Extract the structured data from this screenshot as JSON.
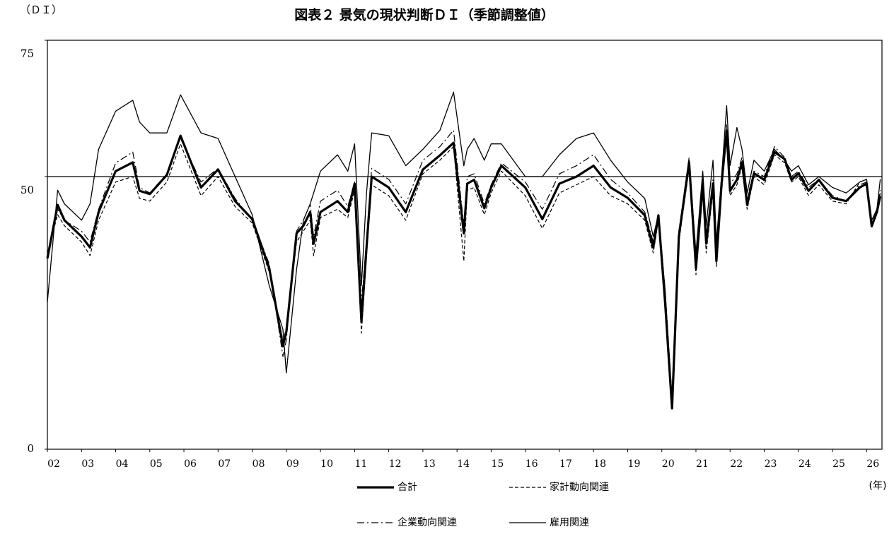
{
  "chart_data": {
    "type": "line",
    "title": "図表２ 景気の現状判断ＤＩ（季節調整値）",
    "y_label": "（ＤＩ）",
    "x_label": "(年)",
    "xlim": [
      2002,
      2026.45
    ],
    "ylim": [
      0,
      75
    ],
    "yticks": [
      0,
      50,
      75
    ],
    "reference_line": 50,
    "xticks": [
      {
        "value": 2002,
        "label": "02"
      },
      {
        "value": 2003,
        "label": "03"
      },
      {
        "value": 2004,
        "label": "04"
      },
      {
        "value": 2005,
        "label": "05"
      },
      {
        "value": 2006,
        "label": "06"
      },
      {
        "value": 2007,
        "label": "07"
      },
      {
        "value": 2008,
        "label": "08"
      },
      {
        "value": 2009,
        "label": "09"
      },
      {
        "value": 2010,
        "label": "10"
      },
      {
        "value": 2011,
        "label": "11"
      },
      {
        "value": 2012,
        "label": "12"
      },
      {
        "value": 2013,
        "label": "13"
      },
      {
        "value": 2014,
        "label": "14"
      },
      {
        "value": 2015,
        "label": "15"
      },
      {
        "value": 2016,
        "label": "16"
      },
      {
        "value": 2017,
        "label": "17"
      },
      {
        "value": 2018,
        "label": "18"
      },
      {
        "value": 2019,
        "label": "19"
      },
      {
        "value": 2020,
        "label": "20"
      },
      {
        "value": 2021,
        "label": "21"
      },
      {
        "value": 2022,
        "label": "22"
      },
      {
        "value": 2023,
        "label": "23"
      },
      {
        "value": 2024,
        "label": "24"
      },
      {
        "value": 2025,
        "label": "25"
      },
      {
        "value": 2026,
        "label": "26"
      }
    ],
    "x": [
      2002.0,
      2002.3,
      2002.5,
      2003.0,
      2003.25,
      2003.5,
      2004.0,
      2004.5,
      2004.7,
      2005.0,
      2005.5,
      2005.9,
      2006.5,
      2007.0,
      2007.5,
      2008.0,
      2008.5,
      2008.9,
      2009.0,
      2009.3,
      2009.5,
      2009.7,
      2009.8,
      2010.0,
      2010.5,
      2010.8,
      2011.0,
      2011.2,
      2011.35,
      2011.5,
      2012.0,
      2012.5,
      2013.0,
      2013.5,
      2013.9,
      2014.2,
      2014.3,
      2014.5,
      2014.8,
      2015.0,
      2015.3,
      2016.0,
      2016.5,
      2017.0,
      2017.5,
      2018.0,
      2018.5,
      2019.0,
      2019.5,
      2019.75,
      2019.9,
      2020.1,
      2020.3,
      2020.5,
      2020.8,
      2021.0,
      2021.2,
      2021.3,
      2021.5,
      2021.6,
      2021.75,
      2021.9,
      2022.0,
      2022.2,
      2022.35,
      2022.5,
      2022.7,
      2023.0,
      2023.3,
      2023.6,
      2023.8,
      2024.0,
      2024.3,
      2024.6,
      2025.0,
      2025.4,
      2025.8,
      2026.0,
      2026.15,
      2026.3,
      2026.4
    ],
    "series": [
      {
        "name": "合計",
        "color": "#000000",
        "width": 3.2,
        "dash": "solid",
        "values": [
          35,
          44.8,
          42,
          39,
          37,
          43.5,
          51,
          52.6,
          47.4,
          46.8,
          50.3,
          57.5,
          48,
          51.3,
          45.5,
          42.2,
          33.2,
          18.9,
          21.5,
          39.6,
          41,
          43.5,
          37.7,
          43.5,
          45.5,
          43.5,
          48.7,
          23.4,
          37,
          50,
          48,
          43.5,
          51.3,
          53.9,
          56.2,
          39.6,
          48.7,
          49.4,
          44.2,
          48,
          52,
          48,
          42.2,
          48.7,
          50,
          52,
          48,
          46.1,
          42.9,
          37,
          42.9,
          26.7,
          7.5,
          39,
          52.6,
          33.2,
          48.7,
          37.7,
          48.7,
          34.5,
          48.7,
          58.4,
          47.4,
          49.4,
          52.6,
          44.8,
          50.6,
          49.4,
          54.5,
          53.2,
          49.4,
          50.6,
          47.4,
          49.4,
          46.1,
          45.5,
          48,
          48.7,
          40.9,
          43.5,
          46.4
        ]
      },
      {
        "name": "家計動向関連",
        "color": "#000000",
        "width": 1.2,
        "dash": "dashed",
        "values": [
          36,
          43,
          41,
          38,
          35.5,
          42,
          49,
          50,
          46,
          45.5,
          49,
          56,
          46.5,
          50,
          44.5,
          41.5,
          32.5,
          20,
          22,
          38,
          40,
          42,
          35.5,
          42.5,
          44,
          42.5,
          47.5,
          21.3,
          35.5,
          48.5,
          46.5,
          42,
          50.5,
          53,
          55.5,
          34.5,
          47.5,
          48,
          43,
          47,
          51,
          46.5,
          40.5,
          47,
          48.5,
          50,
          46.5,
          45,
          42,
          36,
          42,
          28,
          8.5,
          38,
          51.5,
          32,
          47.5,
          36,
          47.5,
          33.5,
          47,
          58,
          46.5,
          48.5,
          52,
          44,
          50,
          48.5,
          54,
          52.5,
          49,
          50,
          46.5,
          48.5,
          45.5,
          45,
          49,
          49.5,
          41.5,
          43,
          47
        ]
      },
      {
        "name": "企業動向関連",
        "color": "#000000",
        "width": 1.2,
        "dash": "dashdot",
        "values": [
          35.5,
          44,
          42,
          40,
          38,
          44,
          52.5,
          54.5,
          48,
          47,
          50.5,
          57,
          49,
          51.5,
          46,
          42,
          34,
          17,
          20,
          40,
          42,
          45,
          39,
          45.5,
          47.5,
          44.5,
          49,
          27,
          38,
          51.5,
          49.5,
          45,
          53,
          55.5,
          58.5,
          41,
          50,
          50.5,
          45,
          48.5,
          52.5,
          49,
          44,
          50.5,
          52,
          54,
          49.5,
          47,
          43.5,
          38,
          43,
          29,
          9.5,
          40,
          53.5,
          35,
          49.5,
          38.5,
          49.5,
          36,
          49,
          59.5,
          48.5,
          50.5,
          53.5,
          46,
          51,
          50,
          55.5,
          53.5,
          50,
          51,
          48,
          49.5,
          46.5,
          45.5,
          48.5,
          49,
          41.5,
          44,
          47.5
        ]
      },
      {
        "name": "雇用関連",
        "color": "#000000",
        "width": 1.3,
        "dash": "solid",
        "values": [
          27,
          47.5,
          45,
          42,
          45,
          55,
          62,
          64,
          60,
          58,
          58,
          65,
          58,
          57,
          50,
          43,
          30,
          22,
          14,
          33,
          42,
          45,
          47,
          51,
          54,
          51,
          56,
          30,
          47,
          58,
          57.5,
          52,
          55,
          58.5,
          65.5,
          52,
          55,
          57,
          53,
          56,
          56,
          50,
          50,
          54,
          57,
          58,
          53,
          49,
          46,
          39,
          43,
          29,
          8.5,
          38,
          53,
          36,
          51,
          41,
          53,
          38,
          50,
          63,
          52,
          59,
          55,
          47,
          53,
          51,
          55,
          53,
          51,
          52,
          48.5,
          50,
          48,
          47,
          49,
          49.5,
          42,
          44,
          49.5
        ]
      }
    ],
    "legend_position": "bottom"
  }
}
